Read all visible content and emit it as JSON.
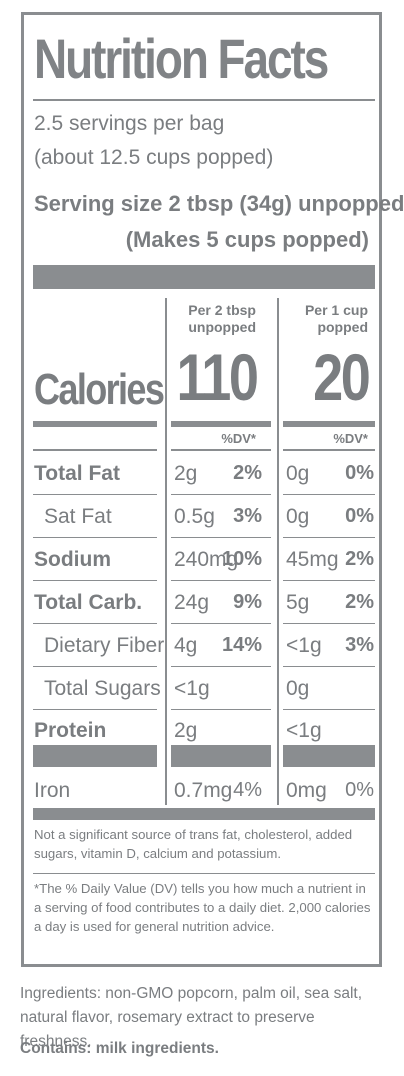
{
  "label": {
    "title": "Nutrition Facts",
    "servings_per": "2.5 servings per bag",
    "servings_note": "(about 12.5 cups popped)",
    "serving_size": "Serving size 2 tbsp (34g) unpopped",
    "serving_makes": "(Makes 5 cups popped)",
    "col1_header_line1": "Per 2 tbsp",
    "col1_header_line2": "unpopped",
    "col2_header_line1": "Per 1 cup",
    "col2_header_line2": "popped",
    "calories_label": "Calories",
    "calories_col1": "110",
    "calories_col2": "20",
    "dv_label": "%DV*",
    "nutrients": [
      {
        "name": "Total Fat",
        "amt1": "2g",
        "pct1": "2%",
        "amt2": "0g",
        "pct2": "0%"
      },
      {
        "name": "Sat Fat",
        "amt1": "0.5g",
        "pct1": "3%",
        "amt2": "0g",
        "pct2": "0%"
      },
      {
        "name": "Sodium",
        "amt1": "240mg",
        "pct1": "10%",
        "amt2": "45mg",
        "pct2": "2%"
      },
      {
        "name": "Total Carb.",
        "amt1": "24g",
        "pct1": "9%",
        "amt2": "5g",
        "pct2": "2%"
      },
      {
        "name": "Dietary Fiber",
        "amt1": "4g",
        "pct1": "14%",
        "amt2": "<1g",
        "pct2": "3%"
      },
      {
        "name": "Total Sugars",
        "amt1": "<1g",
        "pct1": "",
        "amt2": "0g",
        "pct2": ""
      },
      {
        "name": "Protein",
        "amt1": "2g",
        "pct1": "",
        "amt2": "<1g",
        "pct2": ""
      },
      {
        "name": "Iron",
        "amt1": "0.7mg",
        "pct1": "4%",
        "amt2": "0mg",
        "pct2": "0%"
      }
    ],
    "footnote_1": "Not a significant source of trans fat, cholesterol, added sugars, vitamin D, calcium and potassium.",
    "footnote_2": "*The % Daily Value (DV) tells you how much a nutrient in a serving of food contributes to a daily diet. 2,000 calories a day is used for general nutrition advice."
  },
  "ingredients": "Ingredients: non-GMO popcorn, palm oil, sea salt, natural flavor, rosemary extract to preserve freshness.",
  "contains": "Contains: milk ingredients.",
  "colors": {
    "ink": "#7a7d80",
    "rule": "#8a8d90",
    "background": "#ffffff"
  }
}
